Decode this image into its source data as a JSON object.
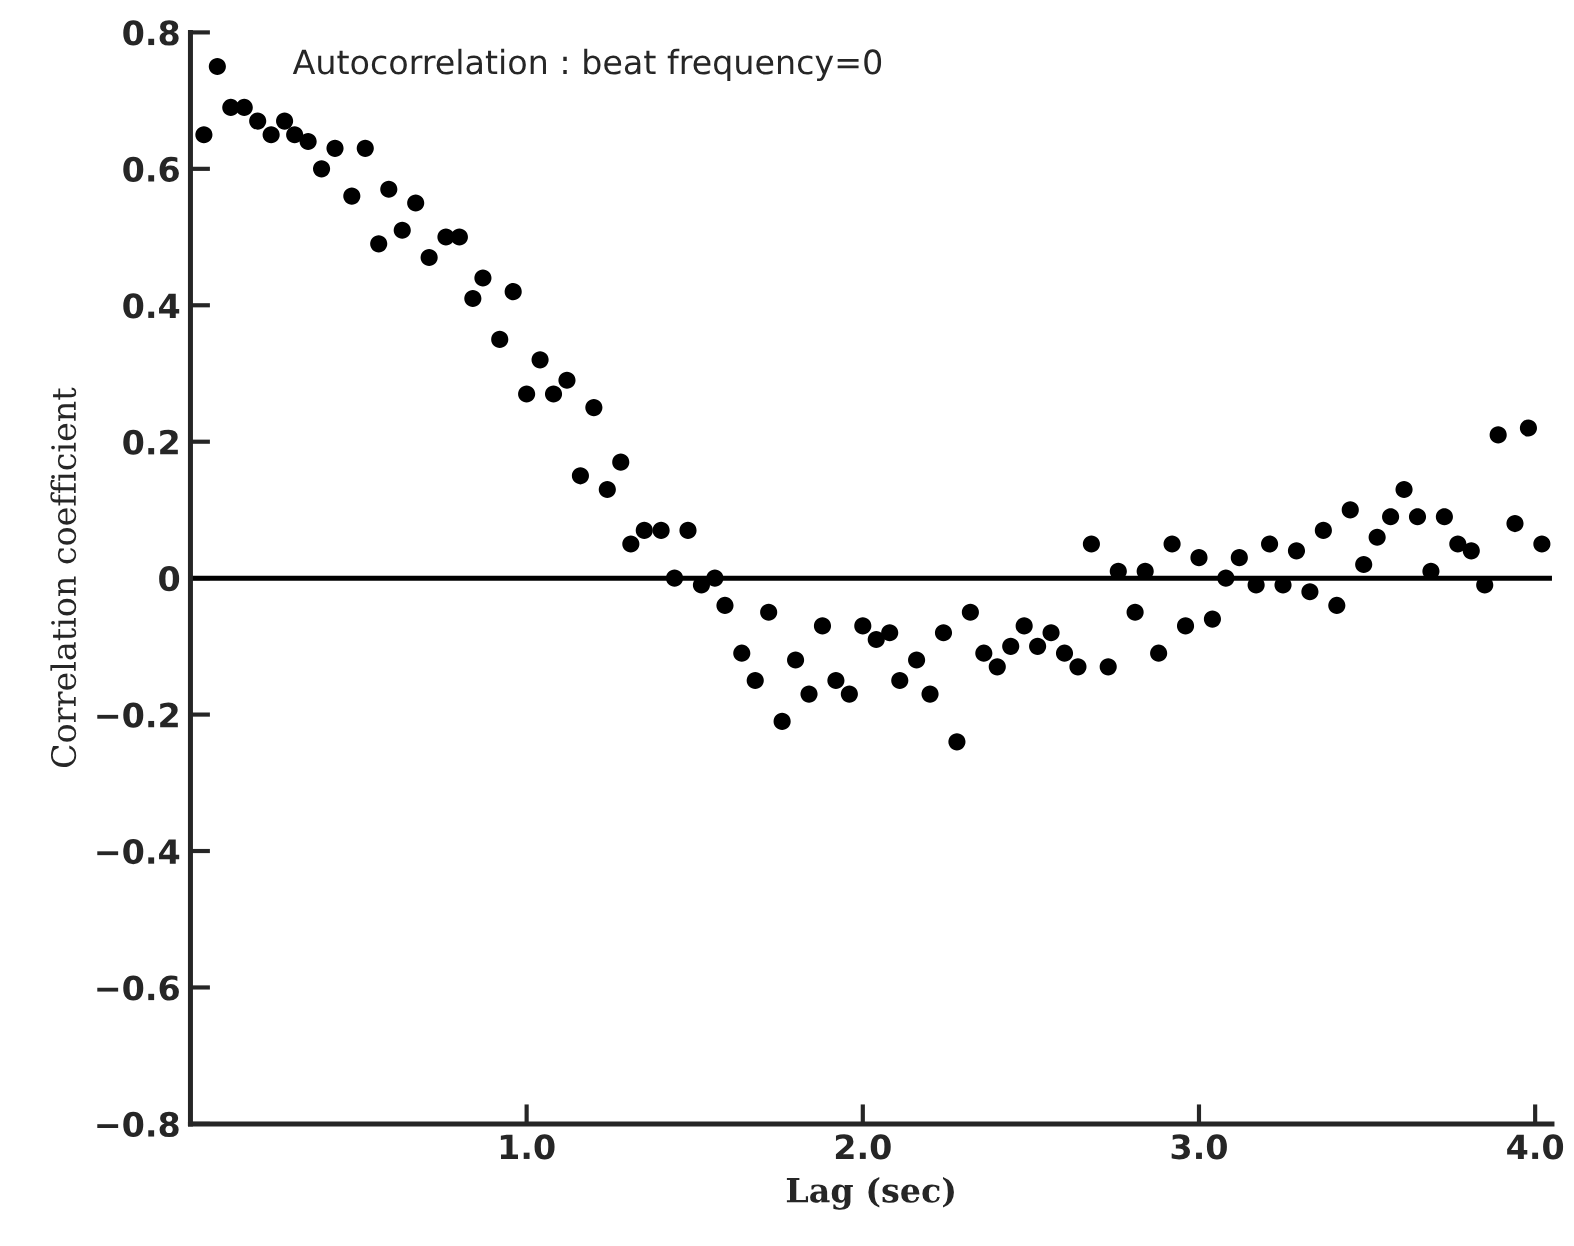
{
  "chart_data": {
    "type": "scatter",
    "xlabel": "Lag (sec)",
    "ylabel": "Correlation coefficient",
    "annotations": [
      "Autocorrelation : beat frequency=0"
    ],
    "x": [
      0.04,
      0.08,
      0.12,
      0.16,
      0.2,
      0.24,
      0.28,
      0.31,
      0.35,
      0.39,
      0.43,
      0.48,
      0.52,
      0.56,
      0.59,
      0.63,
      0.67,
      0.71,
      0.76,
      0.8,
      0.84,
      0.87,
      0.92,
      0.96,
      1.0,
      1.04,
      1.08,
      1.12,
      1.16,
      1.2,
      1.24,
      1.28,
      1.31,
      1.35,
      1.4,
      1.44,
      1.48,
      1.52,
      1.56,
      1.59,
      1.64,
      1.68,
      1.72,
      1.76,
      1.8,
      1.84,
      1.88,
      1.92,
      1.96,
      2.0,
      2.04,
      2.08,
      2.11,
      2.16,
      2.2,
      2.24,
      2.28,
      2.32,
      2.36,
      2.4,
      2.44,
      2.48,
      2.52,
      2.56,
      2.6,
      2.64,
      2.68,
      2.73,
      2.76,
      2.81,
      2.84,
      2.88,
      2.92,
      2.96,
      3.0,
      3.04,
      3.08,
      3.12,
      3.17,
      3.21,
      3.25,
      3.29,
      3.33,
      3.37,
      3.41,
      3.45,
      3.49,
      3.53,
      3.57,
      3.61,
      3.65,
      3.69,
      3.73,
      3.77,
      3.81,
      3.85,
      3.89,
      3.94,
      3.98,
      4.02
    ],
    "series": [
      {
        "color": "#000000",
        "values": [
          0.65,
          0.75,
          0.69,
          0.69,
          0.67,
          0.65,
          0.67,
          0.65,
          0.64,
          0.6,
          0.63,
          0.56,
          0.63,
          0.49,
          0.57,
          0.51,
          0.55,
          0.47,
          0.5,
          0.5,
          0.41,
          0.44,
          0.35,
          0.42,
          0.27,
          0.32,
          0.27,
          0.29,
          0.15,
          0.25,
          0.13,
          0.17,
          0.05,
          0.07,
          0.07,
          0.0,
          0.07,
          -0.01,
          0.0,
          -0.04,
          -0.11,
          -0.15,
          -0.05,
          -0.21,
          -0.12,
          -0.17,
          -0.07,
          -0.15,
          -0.17,
          -0.07,
          -0.09,
          -0.08,
          -0.15,
          -0.12,
          -0.17,
          -0.08,
          -0.24,
          -0.05,
          -0.11,
          -0.13,
          -0.1,
          -0.07,
          -0.1,
          -0.08,
          -0.11,
          -0.13,
          0.05,
          -0.13,
          0.01,
          -0.05,
          0.01,
          -0.11,
          0.05,
          -0.07,
          0.03,
          -0.06,
          0.0,
          0.03,
          -0.01,
          0.05,
          -0.01,
          0.04,
          -0.02,
          0.07,
          -0.04,
          0.1,
          0.02,
          0.06,
          0.09,
          0.13,
          0.09,
          0.01,
          0.09,
          0.05,
          0.04,
          -0.01,
          0.21,
          0.08,
          0.22,
          0.05
        ]
      }
    ],
    "xlim": [
      0,
      4.05
    ],
    "xticks": [
      {
        "value": 1.0,
        "label": "1.0"
      },
      {
        "value": 2.0,
        "label": "2.0"
      },
      {
        "value": 3.0,
        "label": "3.0"
      },
      {
        "value": 4.0,
        "label": "4.0"
      }
    ],
    "ylim": [
      -0.8,
      0.8
    ],
    "yticks": [
      {
        "value": -0.8,
        "label": "−0.8"
      },
      {
        "value": -0.6,
        "label": "−0.6"
      },
      {
        "value": -0.4,
        "label": "−0.4"
      },
      {
        "value": -0.2,
        "label": "−0.2"
      },
      0,
      {
        "value": 0.2,
        "label": "0.2"
      },
      {
        "value": 0.4,
        "label": "0.4"
      },
      {
        "value": 0.6,
        "label": "0.6"
      },
      {
        "value": 0.8,
        "label": "0.8"
      }
    ],
    "ref_lines": [
      {
        "axis": "y",
        "value": 0,
        "color": "#000000"
      }
    ],
    "marker": "circle",
    "grid": false,
    "legend": false
  }
}
